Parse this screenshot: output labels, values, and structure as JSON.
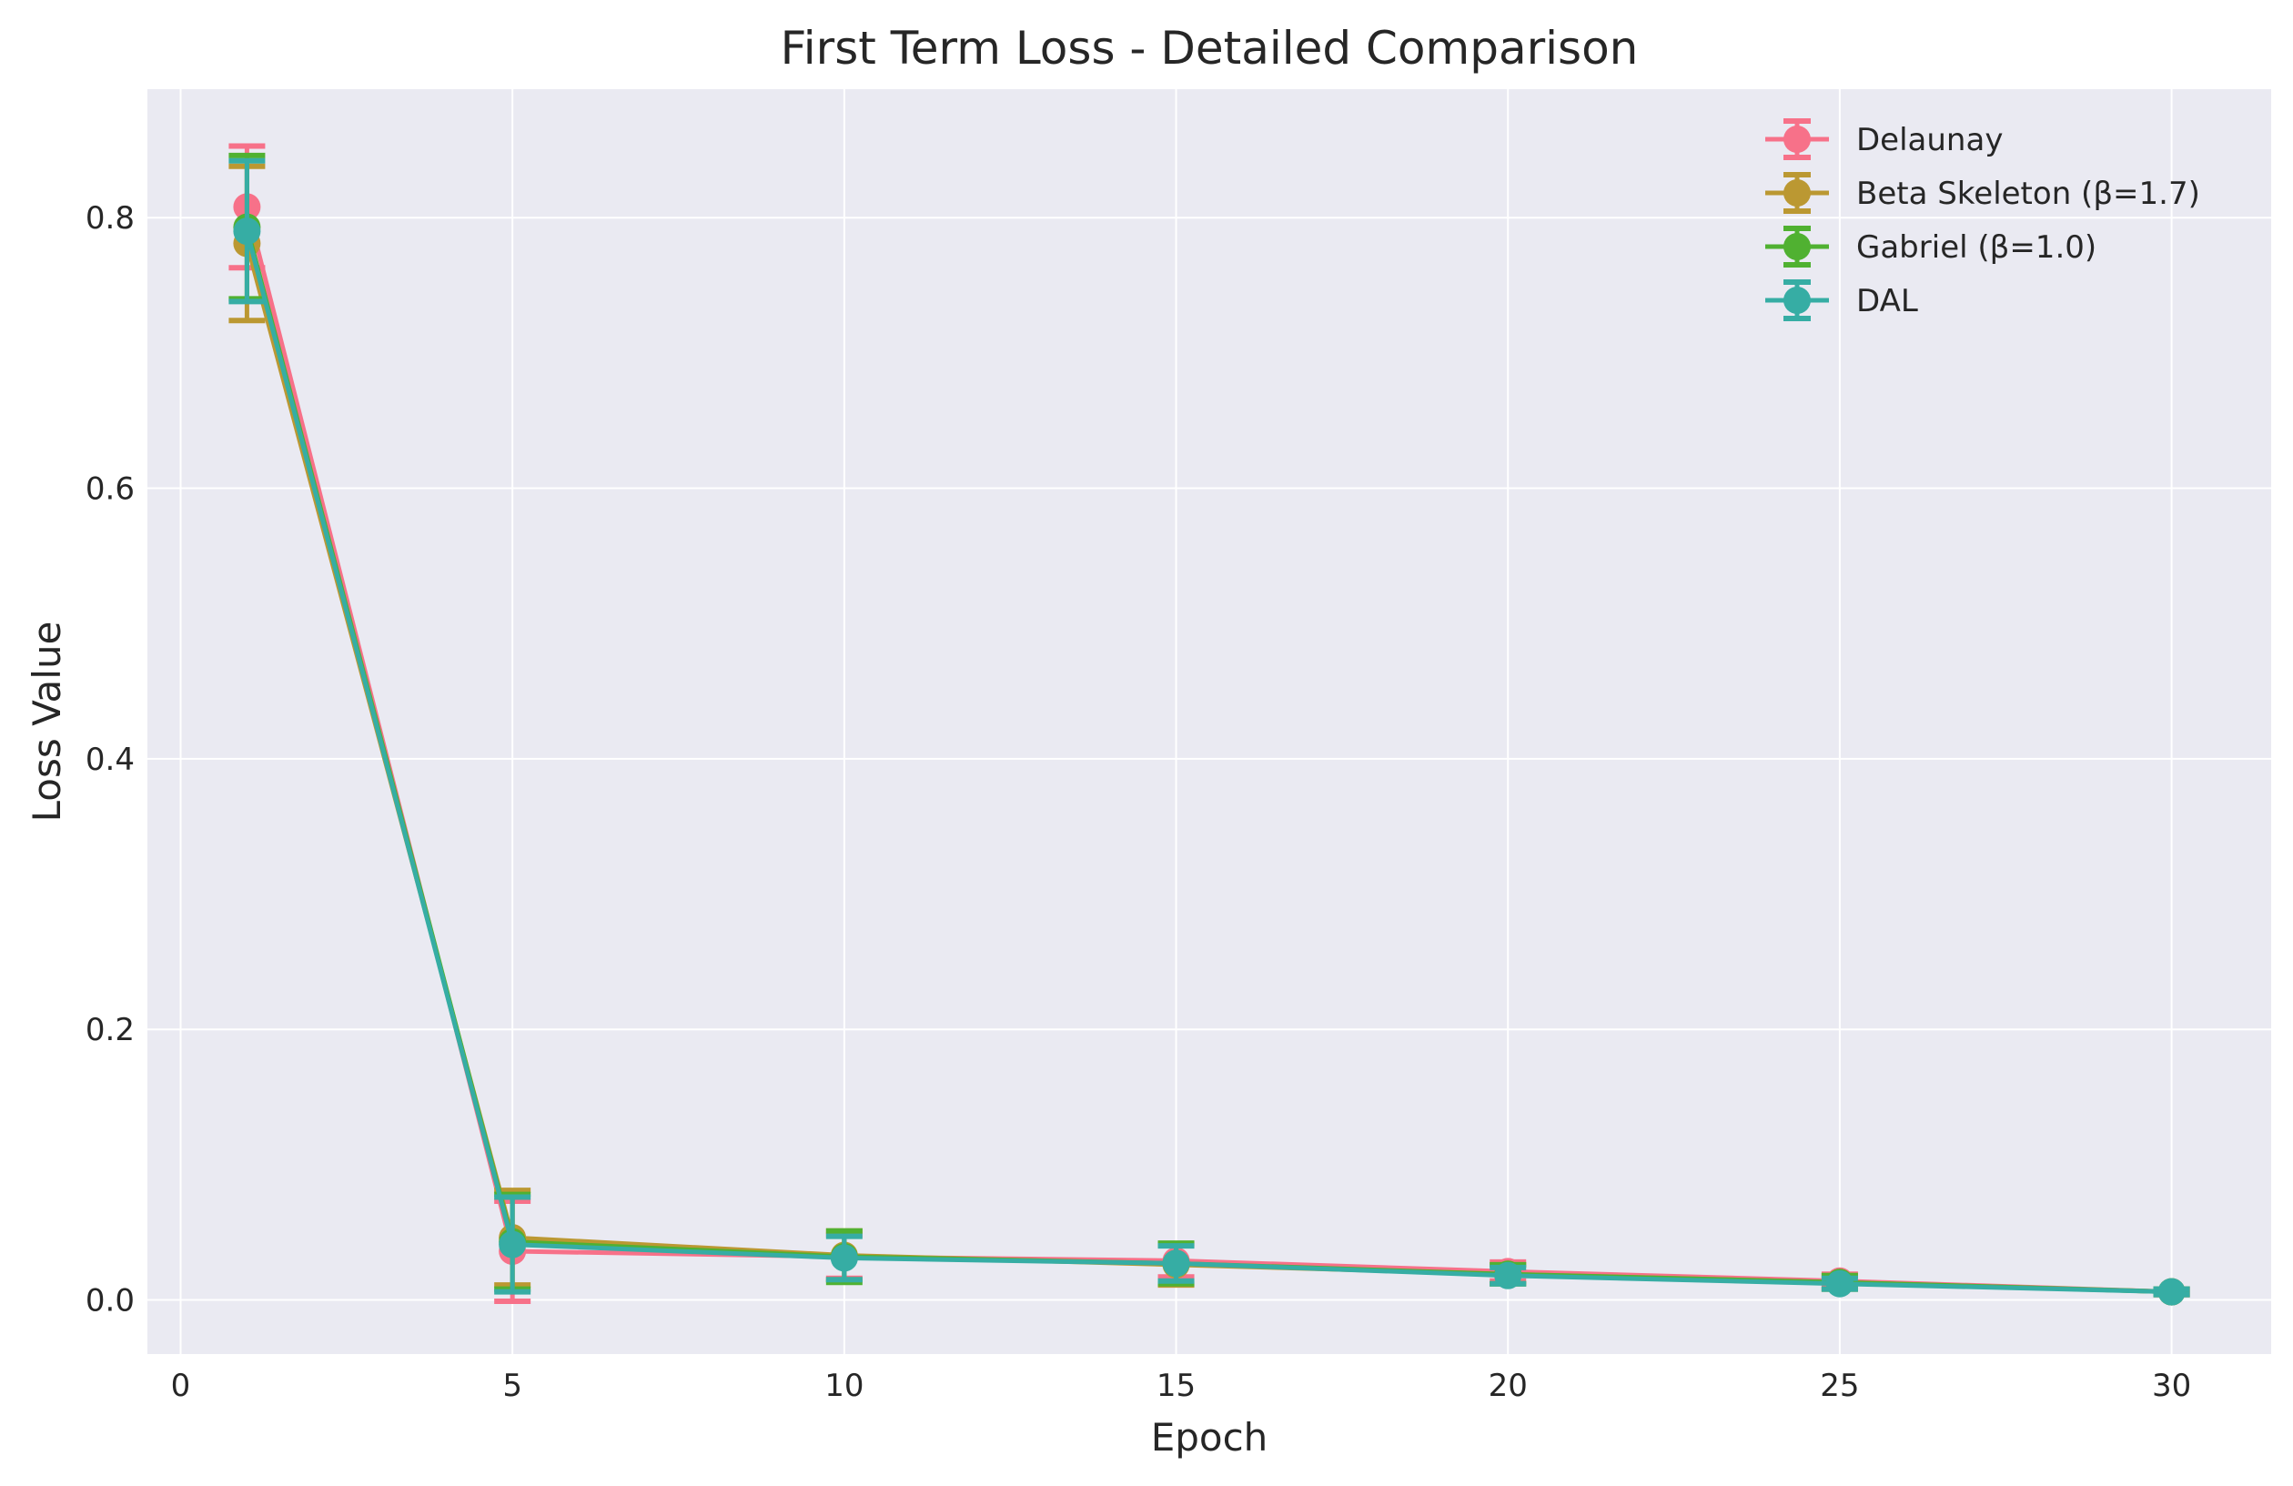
{
  "chart_data": {
    "type": "line",
    "title": "First Term Loss - Detailed Comparison",
    "xlabel": "Epoch",
    "ylabel": "Loss Value",
    "xlim": [
      -0.5,
      31.5
    ],
    "ylim": [
      -0.04,
      0.895
    ],
    "xticks": [
      0,
      5,
      10,
      15,
      20,
      25,
      30
    ],
    "xtick_labels": [
      "0",
      "5",
      "10",
      "15",
      "20",
      "25",
      "30"
    ],
    "yticks": [
      0.0,
      0.2,
      0.4,
      0.6,
      0.8
    ],
    "ytick_labels": [
      "0.0",
      "0.2",
      "0.4",
      "0.6",
      "0.8"
    ],
    "grid": true,
    "legend_position": "top-right",
    "x": [
      1,
      5,
      10,
      15,
      20,
      25,
      30
    ],
    "series": [
      {
        "name": "Delaunay",
        "color": "#f77189",
        "values": [
          0.808,
          0.036,
          0.032,
          0.029,
          0.021,
          0.014,
          0.006
        ],
        "errors": [
          0.045,
          0.037,
          0.016,
          0.012,
          0.007,
          0.005,
          0.002
        ]
      },
      {
        "name": "Beta Skeleton (β=1.7)",
        "color": "#bb9832",
        "values": [
          0.781,
          0.046,
          0.033,
          0.026,
          0.019,
          0.013,
          0.006
        ],
        "errors": [
          0.057,
          0.035,
          0.018,
          0.015,
          0.007,
          0.005,
          0.002
        ]
      },
      {
        "name": "Gabriel (β=1.0)",
        "color": "#50b131",
        "values": [
          0.793,
          0.043,
          0.032,
          0.027,
          0.019,
          0.013,
          0.006
        ],
        "errors": [
          0.053,
          0.035,
          0.019,
          0.015,
          0.007,
          0.005,
          0.002
        ]
      },
      {
        "name": "DAL",
        "color": "#36ada4",
        "values": [
          0.79,
          0.041,
          0.031,
          0.027,
          0.018,
          0.012,
          0.006
        ],
        "errors": [
          0.052,
          0.035,
          0.016,
          0.013,
          0.006,
          0.004,
          0.002
        ]
      }
    ]
  }
}
